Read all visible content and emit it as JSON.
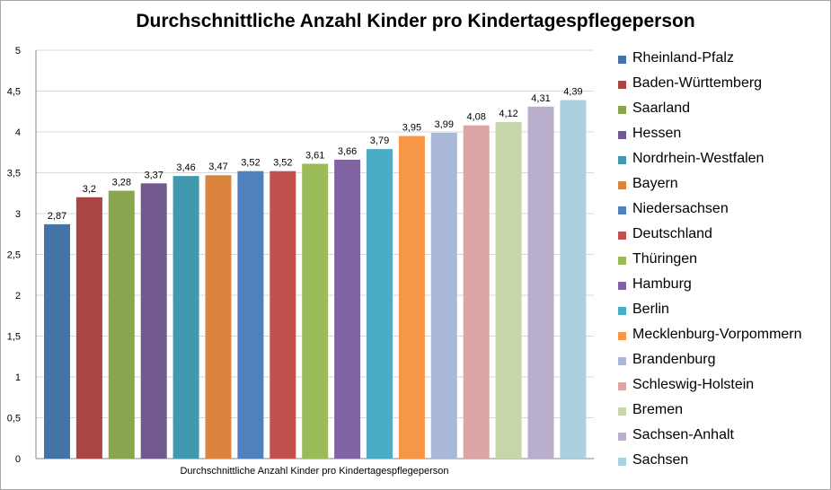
{
  "chart_data": {
    "type": "bar",
    "title": "Durchschnittliche Anzahl Kinder pro Kindertagespflegeperson",
    "xlabel": "Durchschnittliche Anzahl Kinder pro Kindertagespflegeperson",
    "ylabel": "",
    "ylim": [
      0,
      5
    ],
    "yticks": [
      "0",
      "0,5",
      "1",
      "1,5",
      "2",
      "2,5",
      "3",
      "3,5",
      "4",
      "4,5",
      "5"
    ],
    "grid": true,
    "legend_position": "right",
    "series": [
      {
        "name": "Rheinland-Pfalz",
        "value": 2.87,
        "label": "2,87",
        "color": "#4572a7"
      },
      {
        "name": "Baden-Württemberg",
        "value": 3.2,
        "label": "3,2",
        "color": "#aa4643"
      },
      {
        "name": "Saarland",
        "value": 3.28,
        "label": "3,28",
        "color": "#89a54e"
      },
      {
        "name": "Hessen",
        "value": 3.37,
        "label": "3,37",
        "color": "#71588f"
      },
      {
        "name": "Nordrhein-Westfalen",
        "value": 3.46,
        "label": "3,46",
        "color": "#4198af"
      },
      {
        "name": "Bayern",
        "value": 3.47,
        "label": "3,47",
        "color": "#db843d"
      },
      {
        "name": "Niedersachsen",
        "value": 3.52,
        "label": "3,52",
        "color": "#4f81bd"
      },
      {
        "name": "Deutschland",
        "value": 3.52,
        "label": "3,52",
        "color": "#c0504d"
      },
      {
        "name": "Thüringen",
        "value": 3.61,
        "label": "3,61",
        "color": "#9bbb59"
      },
      {
        "name": "Hamburg",
        "value": 3.66,
        "label": "3,66",
        "color": "#8064a2"
      },
      {
        "name": "Berlin",
        "value": 3.79,
        "label": "3,79",
        "color": "#4bacc6"
      },
      {
        "name": "Mecklenburg-Vorpommern",
        "value": 3.95,
        "label": "3,95",
        "color": "#f79646"
      },
      {
        "name": "Brandenburg",
        "value": 3.99,
        "label": "3,99",
        "color": "#a9b8d9"
      },
      {
        "name": "Schleswig-Holstein",
        "value": 4.08,
        "label": "4,08",
        "color": "#d9a6a5"
      },
      {
        "name": "Bremen",
        "value": 4.12,
        "label": "4,12",
        "color": "#c6d6a9"
      },
      {
        "name": "Sachsen-Anhalt",
        "value": 4.31,
        "label": "4,31",
        "color": "#b9aecb"
      },
      {
        "name": "Sachsen",
        "value": 4.39,
        "label": "4,39",
        "color": "#a9d1de"
      }
    ]
  }
}
